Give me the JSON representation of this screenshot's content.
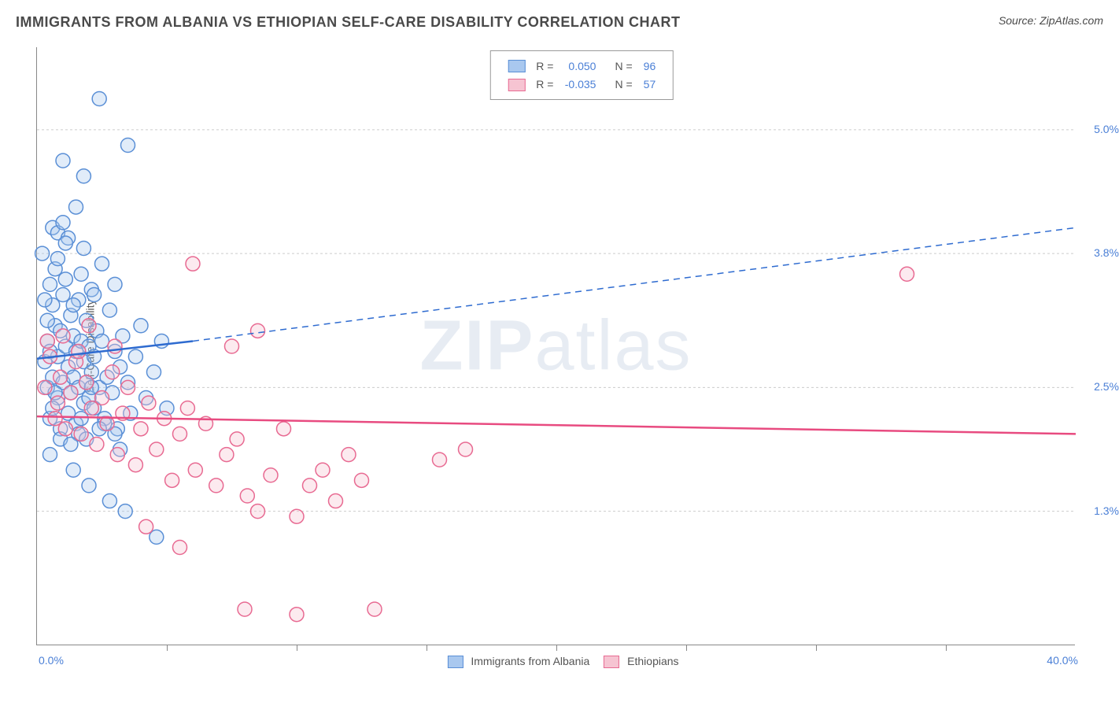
{
  "header": {
    "title": "IMMIGRANTS FROM ALBANIA VS ETHIOPIAN SELF-CARE DISABILITY CORRELATION CHART",
    "source_prefix": "Source: ",
    "source": "ZipAtlas.com"
  },
  "watermark": {
    "bold": "ZIP",
    "thin": "atlas"
  },
  "chart": {
    "type": "scatter",
    "ylabel": "Self-Care Disability",
    "plot_bg": "#ffffff",
    "grid_color": "#cccccc",
    "axis_color": "#888888",
    "xlim": [
      0.0,
      40.0
    ],
    "ylim": [
      0.0,
      5.8
    ],
    "x_axis": {
      "min_label": "0.0%",
      "max_label": "40.0%",
      "ticks_at": [
        5,
        10,
        15,
        20,
        25,
        30,
        35
      ]
    },
    "y_axis": {
      "ticks": [
        {
          "value": 1.3,
          "label": "1.3%"
        },
        {
          "value": 2.5,
          "label": "2.5%"
        },
        {
          "value": 3.8,
          "label": "3.8%"
        },
        {
          "value": 5.0,
          "label": "5.0%"
        }
      ]
    },
    "marker_radius": 9,
    "series": [
      {
        "id": "albania",
        "label": "Immigrants from Albania",
        "fill": "#a9c8ef",
        "stroke": "#5a8fd6",
        "R": "0.050",
        "N": "96",
        "regression": {
          "x1": 0.0,
          "y1": 2.78,
          "x2": 6.0,
          "y2": 2.95,
          "dash_x2": 40.0,
          "dash_y2": 4.05,
          "color": "#2e6bd0",
          "width": 2.5
        },
        "points": [
          [
            0.2,
            3.8
          ],
          [
            0.3,
            2.75
          ],
          [
            0.4,
            2.5
          ],
          [
            0.4,
            2.95
          ],
          [
            0.5,
            3.5
          ],
          [
            0.5,
            2.2
          ],
          [
            0.6,
            3.3
          ],
          [
            0.6,
            2.6
          ],
          [
            0.7,
            3.1
          ],
          [
            0.7,
            3.65
          ],
          [
            0.8,
            2.4
          ],
          [
            0.8,
            2.8
          ],
          [
            0.9,
            3.05
          ],
          [
            0.9,
            2.1
          ],
          [
            1.0,
            3.4
          ],
          [
            1.0,
            2.55
          ],
          [
            1.1,
            2.9
          ],
          [
            1.1,
            3.55
          ],
          [
            1.2,
            2.25
          ],
          [
            1.2,
            2.7
          ],
          [
            1.3,
            2.45
          ],
          [
            1.3,
            3.2
          ],
          [
            1.4,
            3.0
          ],
          [
            1.4,
            2.6
          ],
          [
            1.5,
            2.85
          ],
          [
            1.5,
            2.15
          ],
          [
            1.6,
            3.35
          ],
          [
            1.6,
            2.5
          ],
          [
            1.7,
            2.95
          ],
          [
            1.7,
            3.6
          ],
          [
            1.8,
            2.35
          ],
          [
            1.8,
            2.75
          ],
          [
            1.9,
            2.55
          ],
          [
            1.9,
            3.15
          ],
          [
            2.0,
            2.9
          ],
          [
            2.0,
            2.4
          ],
          [
            2.1,
            3.45
          ],
          [
            2.1,
            2.65
          ],
          [
            2.2,
            2.3
          ],
          [
            2.2,
            2.8
          ],
          [
            2.3,
            3.05
          ],
          [
            2.4,
            2.5
          ],
          [
            2.5,
            2.95
          ],
          [
            2.5,
            3.7
          ],
          [
            2.6,
            2.2
          ],
          [
            2.7,
            2.6
          ],
          [
            2.8,
            3.25
          ],
          [
            2.9,
            2.45
          ],
          [
            3.0,
            2.85
          ],
          [
            3.0,
            3.5
          ],
          [
            3.1,
            2.1
          ],
          [
            3.2,
            2.7
          ],
          [
            3.3,
            3.0
          ],
          [
            3.5,
            2.55
          ],
          [
            3.6,
            2.25
          ],
          [
            3.8,
            2.8
          ],
          [
            4.0,
            3.1
          ],
          [
            4.2,
            2.4
          ],
          [
            4.5,
            2.65
          ],
          [
            4.8,
            2.95
          ],
          [
            5.0,
            2.3
          ],
          [
            0.6,
            4.05
          ],
          [
            0.8,
            4.0
          ],
          [
            1.0,
            4.1
          ],
          [
            1.2,
            3.95
          ],
          [
            1.5,
            4.25
          ],
          [
            1.0,
            4.7
          ],
          [
            1.8,
            4.55
          ],
          [
            2.4,
            5.3
          ],
          [
            3.5,
            4.85
          ],
          [
            0.5,
            1.85
          ],
          [
            1.4,
            1.7
          ],
          [
            2.0,
            1.55
          ],
          [
            2.8,
            1.4
          ],
          [
            3.4,
            1.3
          ],
          [
            4.6,
            1.05
          ],
          [
            1.8,
            3.85
          ],
          [
            0.9,
            2.0
          ],
          [
            2.2,
            3.4
          ],
          [
            0.4,
            3.15
          ],
          [
            1.6,
            2.05
          ],
          [
            0.7,
            2.45
          ],
          [
            2.6,
            2.15
          ],
          [
            1.1,
            3.9
          ],
          [
            0.3,
            3.35
          ],
          [
            1.9,
            2.0
          ],
          [
            3.2,
            1.9
          ],
          [
            0.8,
            3.75
          ],
          [
            2.4,
            2.1
          ],
          [
            1.3,
            1.95
          ],
          [
            0.5,
            2.85
          ],
          [
            2.1,
            2.5
          ],
          [
            1.7,
            2.2
          ],
          [
            3.0,
            2.05
          ],
          [
            0.6,
            2.3
          ],
          [
            1.4,
            3.3
          ]
        ]
      },
      {
        "id": "ethiopians",
        "label": "Ethiopians",
        "fill": "#f6c4d2",
        "stroke": "#e86a92",
        "R": "-0.035",
        "N": "57",
        "regression": {
          "x1": 0.0,
          "y1": 2.22,
          "x2": 40.0,
          "y2": 2.05,
          "color": "#e84b80",
          "width": 2.5
        },
        "points": [
          [
            0.3,
            2.5
          ],
          [
            0.5,
            2.8
          ],
          [
            0.7,
            2.2
          ],
          [
            0.9,
            2.6
          ],
          [
            1.1,
            2.1
          ],
          [
            1.3,
            2.45
          ],
          [
            1.5,
            2.75
          ],
          [
            1.7,
            2.05
          ],
          [
            1.9,
            2.55
          ],
          [
            2.1,
            2.3
          ],
          [
            2.3,
            1.95
          ],
          [
            2.5,
            2.4
          ],
          [
            2.7,
            2.15
          ],
          [
            2.9,
            2.65
          ],
          [
            3.1,
            1.85
          ],
          [
            3.3,
            2.25
          ],
          [
            3.5,
            2.5
          ],
          [
            3.8,
            1.75
          ],
          [
            4.0,
            2.1
          ],
          [
            4.3,
            2.35
          ],
          [
            4.6,
            1.9
          ],
          [
            4.9,
            2.2
          ],
          [
            5.2,
            1.6
          ],
          [
            5.5,
            2.05
          ],
          [
            5.8,
            2.3
          ],
          [
            6.1,
            1.7
          ],
          [
            6.5,
            2.15
          ],
          [
            6.9,
            1.55
          ],
          [
            7.3,
            1.85
          ],
          [
            7.7,
            2.0
          ],
          [
            8.1,
            1.45
          ],
          [
            8.5,
            1.3
          ],
          [
            9.0,
            1.65
          ],
          [
            9.5,
            2.1
          ],
          [
            10.0,
            1.25
          ],
          [
            10.5,
            1.55
          ],
          [
            11.0,
            1.7
          ],
          [
            11.5,
            1.4
          ],
          [
            12.0,
            1.85
          ],
          [
            12.5,
            1.6
          ],
          [
            8.0,
            0.35
          ],
          [
            10.0,
            0.3
          ],
          [
            13.0,
            0.35
          ],
          [
            15.5,
            1.8
          ],
          [
            16.5,
            1.9
          ],
          [
            6.0,
            3.7
          ],
          [
            7.5,
            2.9
          ],
          [
            8.5,
            3.05
          ],
          [
            33.5,
            3.6
          ],
          [
            4.2,
            1.15
          ],
          [
            5.5,
            0.95
          ],
          [
            2.0,
            3.1
          ],
          [
            3.0,
            2.9
          ],
          [
            1.0,
            3.0
          ],
          [
            0.4,
            2.95
          ],
          [
            0.8,
            2.35
          ],
          [
            1.6,
            2.85
          ]
        ]
      }
    ],
    "legend_top": {
      "R_label": "R =",
      "N_label": "N ="
    },
    "legend_bottom": [
      {
        "series": "albania"
      },
      {
        "series": "ethiopians"
      }
    ]
  }
}
